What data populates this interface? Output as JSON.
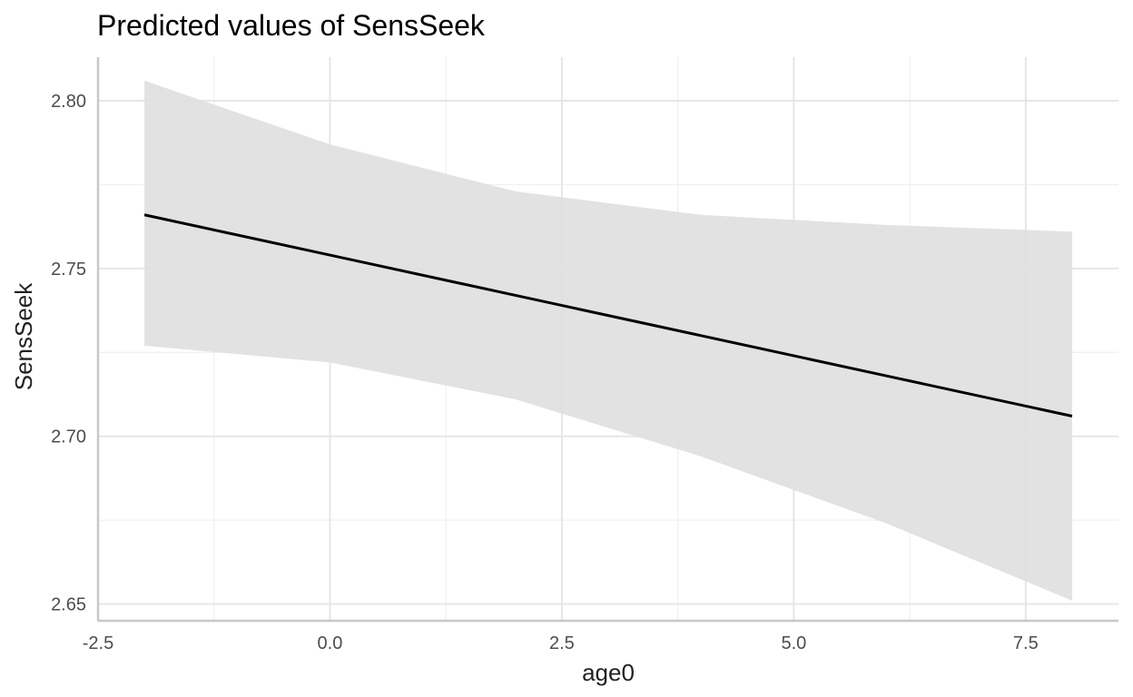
{
  "chart_data": {
    "type": "line",
    "title": "Predicted values of SensSeek",
    "xlabel": "age0",
    "ylabel": "SensSeek",
    "xlim": [
      -2.5,
      8.5
    ],
    "ylim": [
      2.645,
      2.813
    ],
    "x_ticks": [
      {
        "value": -2.5,
        "label": "-2.5"
      },
      {
        "value": 0.0,
        "label": "0.0"
      },
      {
        "value": 2.5,
        "label": "2.5"
      },
      {
        "value": 5.0,
        "label": "5.0"
      },
      {
        "value": 7.5,
        "label": "7.5"
      }
    ],
    "y_ticks": [
      {
        "value": 2.65,
        "label": "2.65"
      },
      {
        "value": 2.7,
        "label": "2.70"
      },
      {
        "value": 2.75,
        "label": "2.75"
      },
      {
        "value": 2.8,
        "label": "2.80"
      }
    ],
    "grid": true,
    "series": [
      {
        "x": [
          -2,
          0,
          2,
          4,
          6,
          8
        ],
        "values": [
          2.766,
          2.754,
          2.742,
          2.73,
          2.718,
          2.706
        ],
        "lower": [
          2.727,
          2.722,
          2.711,
          2.694,
          2.674,
          2.651
        ],
        "upper": [
          2.806,
          2.787,
          2.773,
          2.766,
          2.763,
          2.761
        ]
      }
    ]
  },
  "colors": {
    "line": "#000000",
    "ribbon": "#e0e0e0",
    "grid_major": "#e6e6e6",
    "grid_minor": "#f0f0f0",
    "axis": "#c8c8c8",
    "tick_text": "#4d4d4d"
  }
}
